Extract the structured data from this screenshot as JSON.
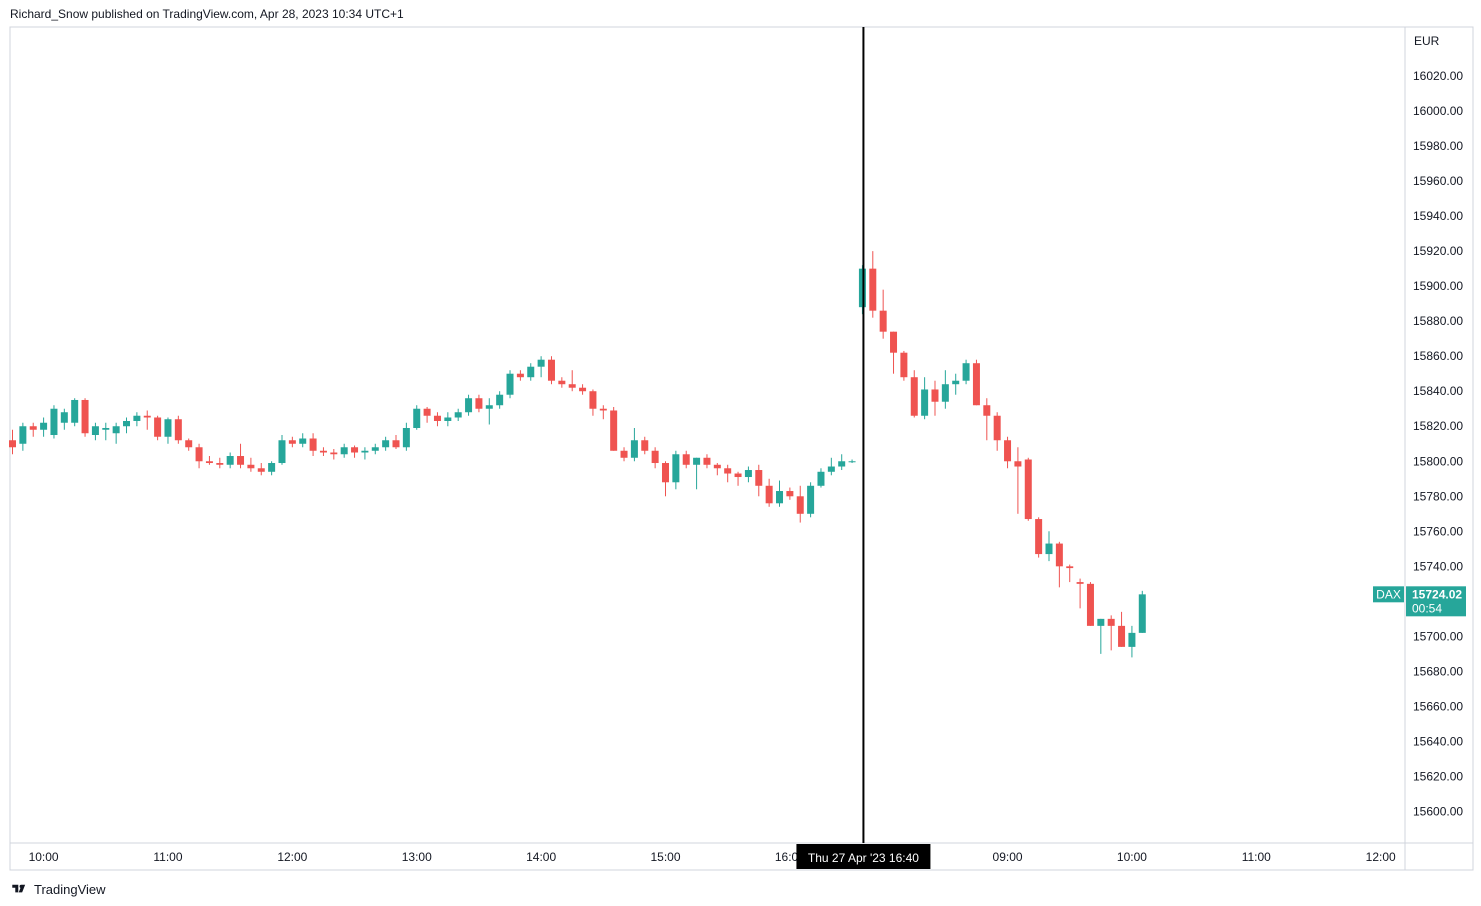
{
  "header": {
    "text": "Richard_Snow published on TradingView.com, Apr 28, 2023 10:34 UTC+1"
  },
  "footer": {
    "brand": "TradingView"
  },
  "colors": {
    "up": "#26a69a",
    "down": "#ef5350",
    "axis_text": "#131722",
    "border": "#d1d4dc",
    "crosshair": "#000000"
  },
  "chart_data": {
    "type": "candlestick",
    "symbol": "DAX",
    "currency": "EUR",
    "ylim": [
      15582,
      16048
    ],
    "y_ticks": [
      15600,
      15620,
      15640,
      15660,
      15680,
      15700,
      15720,
      15740,
      15760,
      15780,
      15800,
      15820,
      15840,
      15860,
      15880,
      15900,
      15920,
      15940,
      15960,
      15980,
      16000,
      16020
    ],
    "y_tick_labels": [
      "15600.00",
      "15620.00",
      "15640.00",
      "15660.00",
      "15680.00",
      "15700.00",
      "15720.00",
      "15740.00",
      "15760.00",
      "15780.00",
      "15800.00",
      "15820.00",
      "15840.00",
      "15860.00",
      "15880.00",
      "15900.00",
      "15920.00",
      "15940.00",
      "15960.00",
      "15980.00",
      "16000.00",
      "16020.00"
    ],
    "x_ticks": [
      {
        "label": "10:00",
        "bar": 3
      },
      {
        "label": "11:00",
        "bar": 15
      },
      {
        "label": "12:00",
        "bar": 27
      },
      {
        "label": "13:00",
        "bar": 39
      },
      {
        "label": "14:00",
        "bar": 51
      },
      {
        "label": "15:00",
        "bar": 63
      },
      {
        "label": "16:00",
        "bar": 75
      },
      {
        "label": "09:00",
        "bar": 96
      },
      {
        "label": "10:00",
        "bar": 108
      },
      {
        "label": "11:00",
        "bar": 120
      },
      {
        "label": "12:00",
        "bar": 132
      }
    ],
    "crosshair": {
      "bar": 82,
      "label": "Thu 27 Apr '23   16:40"
    },
    "last_price": {
      "value": 15724.02,
      "label": "15724.02",
      "countdown": "00:54",
      "symbol_label": "DAX"
    },
    "candles": [
      [
        15812,
        15818,
        15804,
        15808
      ],
      [
        15810,
        15822,
        15806,
        15820
      ],
      [
        15820,
        15822,
        15814,
        15818
      ],
      [
        15818,
        15825,
        15814,
        15822
      ],
      [
        15815,
        15832,
        15813,
        15830
      ],
      [
        15822,
        15830,
        15818,
        15828
      ],
      [
        15822,
        15836,
        15820,
        15835
      ],
      [
        15835,
        15836,
        15814,
        15816
      ],
      [
        15815,
        15822,
        15812,
        15820
      ],
      [
        15818,
        15822,
        15812,
        15819
      ],
      [
        15816,
        15822,
        15810,
        15820
      ],
      [
        15820,
        15825,
        15816,
        15823
      ],
      [
        15823,
        15828,
        15820,
        15826
      ],
      [
        15826,
        15829,
        15818,
        15825
      ],
      [
        15825,
        15826,
        15812,
        15814
      ],
      [
        15814,
        15825,
        15810,
        15824
      ],
      [
        15824,
        15826,
        15810,
        15812
      ],
      [
        15812,
        15813,
        15806,
        15808
      ],
      [
        15808,
        15810,
        15796,
        15800
      ],
      [
        15800,
        15803,
        15798,
        15799
      ],
      [
        15799,
        15802,
        15796,
        15798
      ],
      [
        15798,
        15805,
        15796,
        15803
      ],
      [
        15803,
        15810,
        15796,
        15798
      ],
      [
        15798,
        15802,
        15794,
        15796
      ],
      [
        15796,
        15799,
        15792,
        15794
      ],
      [
        15794,
        15800,
        15792,
        15799
      ],
      [
        15799,
        15815,
        15798,
        15812
      ],
      [
        15812,
        15814,
        15808,
        15810
      ],
      [
        15810,
        15816,
        15808,
        15813
      ],
      [
        15813,
        15816,
        15803,
        15806
      ],
      [
        15806,
        15808,
        15803,
        15805
      ],
      [
        15805,
        15807,
        15801,
        15804
      ],
      [
        15804,
        15810,
        15802,
        15808
      ],
      [
        15808,
        15809,
        15802,
        15805
      ],
      [
        15805,
        15808,
        15801,
        15806
      ],
      [
        15806,
        15810,
        15804,
        15808
      ],
      [
        15808,
        15814,
        15806,
        15812
      ],
      [
        15812,
        15815,
        15807,
        15808
      ],
      [
        15808,
        15822,
        15806,
        15819
      ],
      [
        15819,
        15832,
        15818,
        15830
      ],
      [
        15830,
        15831,
        15822,
        15826
      ],
      [
        15826,
        15828,
        15820,
        15823
      ],
      [
        15823,
        15828,
        15820,
        15825
      ],
      [
        15825,
        15830,
        15823,
        15828
      ],
      [
        15828,
        15838,
        15826,
        15836
      ],
      [
        15836,
        15838,
        15828,
        15830
      ],
      [
        15830,
        15836,
        15821,
        15832
      ],
      [
        15832,
        15840,
        15830,
        15838
      ],
      [
        15838,
        15852,
        15836,
        15850
      ],
      [
        15850,
        15852,
        15846,
        15848
      ],
      [
        15848,
        15856,
        15846,
        15854
      ],
      [
        15854,
        15860,
        15848,
        15858
      ],
      [
        15858,
        15860,
        15844,
        15846
      ],
      [
        15846,
        15848,
        15842,
        15844
      ],
      [
        15844,
        15852,
        15840,
        15842
      ],
      [
        15842,
        15844,
        15838,
        15840
      ],
      [
        15840,
        15841,
        15826,
        15830
      ],
      [
        15830,
        15832,
        15824,
        15829
      ],
      [
        15829,
        15831,
        15806,
        15806
      ],
      [
        15806,
        15808,
        15800,
        15802
      ],
      [
        15802,
        15819,
        15800,
        15812
      ],
      [
        15812,
        15814,
        15804,
        15806
      ],
      [
        15806,
        15808,
        15796,
        15799
      ],
      [
        15799,
        15800,
        15780,
        15788
      ],
      [
        15788,
        15806,
        15784,
        15804
      ],
      [
        15804,
        15806,
        15796,
        15798
      ],
      [
        15798,
        15802,
        15784,
        15802
      ],
      [
        15802,
        15804,
        15796,
        15798
      ],
      [
        15798,
        15799,
        15792,
        15796
      ],
      [
        15796,
        15798,
        15788,
        15793
      ],
      [
        15793,
        15794,
        15786,
        15791
      ],
      [
        15791,
        15797,
        15788,
        15795
      ],
      [
        15795,
        15798,
        15780,
        15786
      ],
      [
        15786,
        15790,
        15774,
        15776
      ],
      [
        15776,
        15789,
        15774,
        15783
      ],
      [
        15783,
        15785,
        15778,
        15780
      ],
      [
        15780,
        15786,
        15765,
        15770
      ],
      [
        15770,
        15788,
        15768,
        15786
      ],
      [
        15786,
        15796,
        15785,
        15794
      ],
      [
        15794,
        15802,
        15792,
        15797
      ],
      [
        15797,
        15804,
        15795,
        15800
      ],
      [
        15800,
        15801,
        15799,
        15800
      ],
      [
        15888,
        15912,
        15884,
        15910
      ],
      [
        15910,
        15920,
        15882,
        15886
      ],
      [
        15886,
        15898,
        15870,
        15874
      ],
      [
        15874,
        15874,
        15850,
        15862
      ],
      [
        15862,
        15863,
        15846,
        15848
      ],
      [
        15848,
        15852,
        15825,
        15826
      ],
      [
        15826,
        15848,
        15824,
        15841
      ],
      [
        15841,
        15846,
        15826,
        15834
      ],
      [
        15834,
        15852,
        15830,
        15844
      ],
      [
        15844,
        15850,
        15838,
        15846
      ],
      [
        15846,
        15858,
        15844,
        15856
      ],
      [
        15856,
        15858,
        15832,
        15832
      ],
      [
        15832,
        15836,
        15812,
        15826
      ],
      [
        15826,
        15828,
        15806,
        15812
      ],
      [
        15812,
        15814,
        15796,
        15800
      ],
      [
        15800,
        15808,
        15770,
        15797
      ],
      [
        15801,
        15802,
        15766,
        15767
      ],
      [
        15767,
        15768,
        15745,
        15747
      ],
      [
        15747,
        15760,
        15743,
        15753
      ],
      [
        15753,
        15754,
        15728,
        15740
      ],
      [
        15740,
        15741,
        15731,
        15739
      ],
      [
        15731,
        15733,
        15716,
        15730
      ],
      [
        15730,
        15731,
        15706,
        15706
      ],
      [
        15706,
        15710,
        15690,
        15710
      ],
      [
        15710,
        15712,
        15692,
        15706
      ],
      [
        15706,
        15714,
        15694,
        15694
      ],
      [
        15694,
        15706,
        15688,
        15702
      ],
      [
        15702,
        15726,
        15702,
        15724
      ]
    ]
  }
}
